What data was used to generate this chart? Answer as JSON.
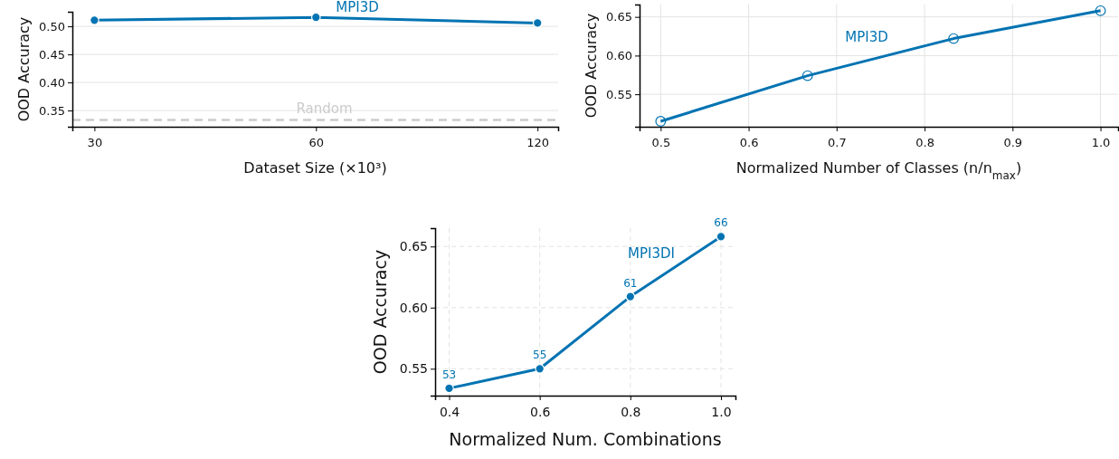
{
  "chart_data": [
    {
      "type": "line",
      "xlabel": "Dataset Size (×10³)",
      "ylabel": "OOD Accuracy",
      "x": [
        30,
        60,
        120
      ],
      "log": "x",
      "xlim": [
        28,
        128
      ],
      "xticks": [
        30,
        60,
        120
      ],
      "ylim": [
        0.321,
        0.526
      ],
      "yticks": [
        0.35,
        {
          "value": 0.4,
          "label": "0.40"
        },
        0.45,
        {
          "value": 0.5,
          "label": "0.50"
        }
      ],
      "grid": "y",
      "marker": "circle",
      "line_style": "solid",
      "series": [
        {
          "name": "MPI3D",
          "color": "#0173b2",
          "values": [
            0.511,
            0.516,
            0.506
          ]
        }
      ],
      "ref_lines": [
        {
          "axis": "y",
          "value": 0.333,
          "label": "Random",
          "color": "#cccccc",
          "line_style": "dashed"
        }
      ]
    },
    {
      "type": "line",
      "xlabel": "Normalized Number of Classes (n/n$_{max}$)",
      "ylabel": "OOD Accuracy",
      "x": [
        0.5,
        0.667,
        0.833,
        1.0
      ],
      "xlim": [
        0.476,
        1.02
      ],
      "xticks": [
        0.5,
        0.6,
        0.7,
        0.8,
        0.9,
        {
          "value": 1,
          "label": "1.0"
        }
      ],
      "ylim": [
        0.508,
        0.666
      ],
      "yticks": [
        0.55,
        {
          "value": 0.6,
          "label": "0.60"
        },
        0.65
      ],
      "grid": true,
      "marker": "circle",
      "line_style": "solid",
      "series": [
        {
          "name": "MPI3D",
          "color": "#0173b2",
          "values": [
            0.515,
            0.574,
            0.622,
            0.658
          ]
        }
      ]
    },
    {
      "type": "line",
      "xlabel": "Normalized Num. Combinations",
      "ylabel": "OOD Accuracy",
      "x": [
        0.4,
        0.6,
        0.8,
        1.0
      ],
      "xlim": [
        0.369,
        1.032
      ],
      "xticks": [
        0.4,
        0.6,
        0.8,
        {
          "value": 1,
          "label": "1.0"
        }
      ],
      "ylim": [
        0.528,
        0.665
      ],
      "yticks": [
        0.55,
        {
          "value": 0.6,
          "label": "0.60"
        },
        0.65
      ],
      "grid": true,
      "marker": "circle",
      "line_style": "solid",
      "series": [
        {
          "name": "MPI3DI",
          "color": "#0173b2",
          "values": [
            0.534,
            0.55,
            0.609,
            0.658
          ]
        }
      ],
      "annotations": [
        {
          "text": "53",
          "x": 0.4,
          "y": 0.534
        },
        {
          "text": "55",
          "x": 0.6,
          "y": 0.55
        },
        {
          "text": "61",
          "x": 0.8,
          "y": 0.609
        },
        {
          "text": "66",
          "x": 1.0,
          "y": 0.658
        }
      ]
    }
  ]
}
